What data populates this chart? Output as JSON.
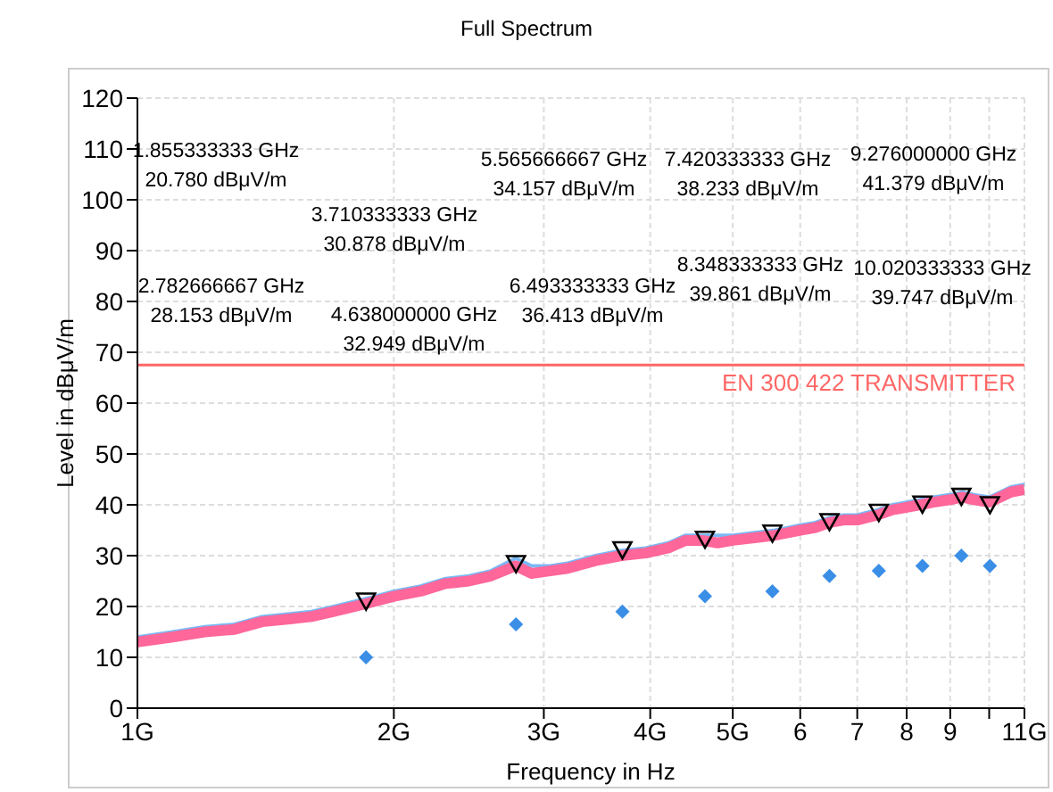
{
  "chart_data": {
    "type": "line",
    "title": "Full Spectrum",
    "xlabel": "Frequency in Hz",
    "ylabel": "Level in dBμV/m",
    "log": "x",
    "grid": true,
    "legend": false,
    "xlim": [
      1,
      11
    ],
    "xticks": [
      {
        "value": 1,
        "label": "1G"
      },
      {
        "value": 2,
        "label": "2G"
      },
      {
        "value": 3,
        "label": "3G"
      },
      {
        "value": 4,
        "label": "4G"
      },
      {
        "value": 5,
        "label": "5G"
      },
      {
        "value": 6,
        "label": "6"
      },
      {
        "value": 7,
        "label": "7"
      },
      {
        "value": 8,
        "label": "8"
      },
      {
        "value": 9,
        "label": "9"
      },
      {
        "value": 10,
        "label": null
      },
      {
        "value": 11,
        "label": "11G"
      }
    ],
    "ylim": [
      0,
      120
    ],
    "yticks": [
      0,
      10,
      20,
      30,
      40,
      50,
      60,
      70,
      80,
      90,
      100,
      110,
      120
    ],
    "ref_lines": [
      {
        "axis": "y",
        "value": 67.5,
        "label": "EN 300 422 TRANSMITTER",
        "color": "#ff6666"
      }
    ],
    "series": [
      {
        "color": "#7ab8f5",
        "marker": "none",
        "x": [
          1,
          1.1,
          1.2,
          1.3,
          1.4,
          1.5,
          1.6,
          1.7,
          1.8,
          1.9,
          2.0,
          2.15,
          2.3,
          2.45,
          2.6,
          2.78,
          2.9,
          3.05,
          3.2,
          3.45,
          3.7,
          3.95,
          4.2,
          4.4,
          4.6,
          4.8,
          5.0,
          5.3,
          5.6,
          5.8,
          6.0,
          6.25,
          6.5,
          6.75,
          7.0,
          7.2,
          7.4,
          7.7,
          8.0,
          8.3,
          8.6,
          9.0,
          9.3,
          9.6,
          10.0,
          10.3,
          10.6,
          11
        ],
        "values": [
          14,
          15,
          16,
          16.5,
          18,
          18.5,
          19,
          20,
          21,
          22,
          23,
          24,
          25.5,
          26,
          27,
          29.5,
          28,
          28,
          28.5,
          30,
          31,
          31.5,
          32.5,
          34,
          34,
          34,
          34,
          34.5,
          35,
          35.5,
          36,
          36.5,
          37.5,
          38,
          38,
          38.5,
          39,
          40,
          40.5,
          41,
          41.5,
          42,
          42.5,
          42,
          41.5,
          42.5,
          43.5,
          44
        ]
      },
      {
        "color": "#ff6699",
        "marker": "none",
        "x": [
          1,
          1.1,
          1.2,
          1.3,
          1.4,
          1.5,
          1.6,
          1.7,
          1.8,
          1.9,
          2.0,
          2.15,
          2.3,
          2.45,
          2.6,
          2.78,
          2.9,
          3.05,
          3.2,
          3.45,
          3.7,
          3.95,
          4.2,
          4.4,
          4.6,
          4.8,
          5.0,
          5.3,
          5.6,
          5.8,
          6.0,
          6.25,
          6.5,
          6.75,
          7.0,
          7.2,
          7.4,
          7.7,
          8.0,
          8.3,
          8.6,
          9.0,
          9.3,
          9.6,
          10.0,
          10.3,
          10.6,
          11
        ],
        "values": [
          13,
          14,
          15,
          15.5,
          17,
          17.5,
          18,
          19,
          20,
          21,
          22,
          23,
          24.5,
          25,
          26,
          28,
          26.5,
          27,
          27.5,
          29,
          30,
          30.5,
          31.5,
          33,
          33,
          32.5,
          33,
          33.5,
          34,
          34.5,
          35,
          35.5,
          36.5,
          37,
          37,
          37.5,
          38,
          39,
          39.5,
          40,
          40.5,
          41,
          41.5,
          41,
          40.5,
          41.5,
          42.5,
          43
        ]
      },
      {
        "type": "scatter",
        "color": "#000000",
        "marker": "triangle",
        "x": [
          1.855333333,
          2.782666667,
          3.710333333,
          4.638,
          5.565666667,
          6.493333333,
          7.420333333,
          8.348333333,
          9.276,
          10.020333333
        ],
        "values": [
          20.78,
          28.153,
          30.878,
          32.949,
          34.157,
          36.413,
          38.233,
          39.861,
          41.379,
          39.747
        ]
      },
      {
        "type": "scatter",
        "color": "#3a8ee6",
        "marker": "diamond",
        "x": [
          1.855333333,
          2.782666667,
          3.710333333,
          4.638,
          5.565666667,
          6.493333333,
          7.420333333,
          8.348333333,
          9.276,
          10.020333333
        ],
        "values": [
          10,
          16.5,
          19,
          22,
          23,
          26,
          27,
          28,
          30,
          28
        ]
      }
    ],
    "annotations": [
      "1.855333333 GHz\n20.780 dBμV/m",
      "2.782666667 GHz\n28.153 dBμV/m",
      "3.710333333 GHz\n30.878 dBμV/m",
      "4.638000000 GHz\n32.949 dBμV/m",
      "5.565666667 GHz\n34.157 dBμV/m",
      "6.493333333 GHz\n36.413 dBμV/m",
      "7.420333333 GHz\n38.233 dBμV/m",
      "8.348333333 GHz\n39.861 dBμV/m",
      "9.276000000 GHz\n41.379 dBμV/m",
      "10.020333333 GHz\n39.747 dBμV/m"
    ]
  }
}
